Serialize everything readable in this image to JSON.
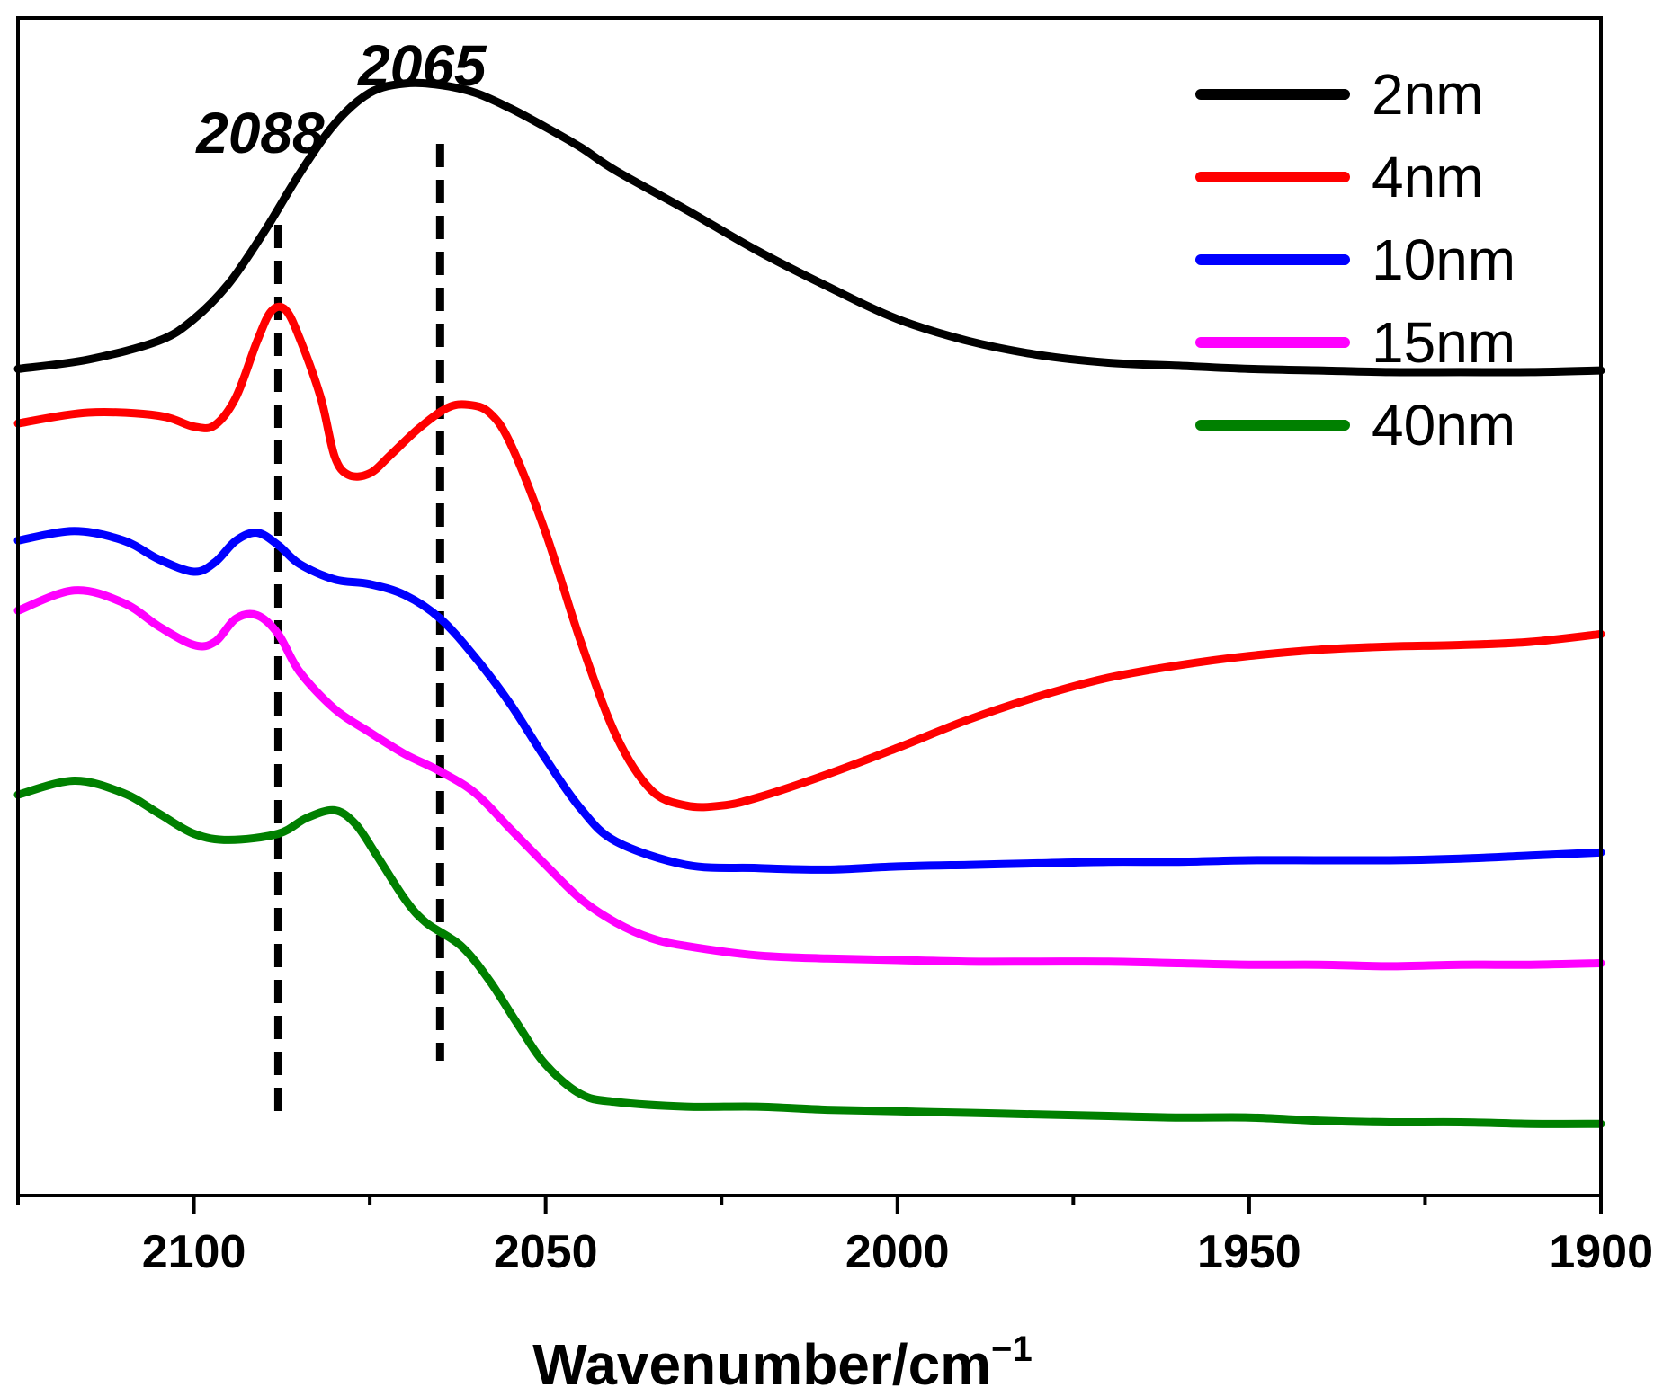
{
  "chart_data": {
    "type": "line",
    "title": "",
    "xlabel": "Wavenumber/cm",
    "xlabel_superscript": "−1",
    "ylabel": "",
    "xlim": [
      2125,
      1900
    ],
    "x_reversed": true,
    "y_ticks_shown": false,
    "grid": false,
    "legend_position": "top-right",
    "x_ticks": [
      "2100",
      "2050",
      "2000",
      "1950",
      "1900"
    ],
    "x_tick_values": [
      2100,
      2050,
      2000,
      1950,
      1900
    ],
    "x_minor_tick_values": [
      2125,
      2075,
      2025,
      1975,
      1925
    ],
    "annotations": [
      {
        "label": "2088",
        "x": 2088,
        "style": "dashed-vertical"
      },
      {
        "label": "2065",
        "x": 2065,
        "style": "dashed-vertical"
      }
    ],
    "series": [
      {
        "name": "2nm",
        "color": "#000000",
        "x": [
          2125,
          2115,
          2105,
          2100,
          2095,
          2090,
          2085,
          2080,
          2075,
          2070,
          2065,
          2060,
          2055,
          2050,
          2045,
          2040,
          2030,
          2020,
          2010,
          2000,
          1990,
          1980,
          1970,
          1960,
          1950,
          1940,
          1930,
          1920,
          1910,
          1900
        ],
        "y": [
          3.4,
          3.46,
          3.58,
          3.72,
          3.95,
          4.28,
          4.65,
          4.97,
          5.17,
          5.23,
          5.22,
          5.17,
          5.07,
          4.95,
          4.82,
          4.67,
          4.42,
          4.16,
          3.93,
          3.72,
          3.58,
          3.49,
          3.44,
          3.42,
          3.4,
          3.39,
          3.38,
          3.38,
          3.38,
          3.39
        ]
      },
      {
        "name": "4nm",
        "color": "#ff0000",
        "x": [
          2125,
          2115,
          2105,
          2100,
          2097,
          2094,
          2091,
          2089,
          2087,
          2085,
          2082,
          2080,
          2078,
          2075,
          2072,
          2068,
          2064,
          2061,
          2058,
          2055,
          2050,
          2045,
          2040,
          2035,
          2030,
          2025,
          2020,
          2010,
          2000,
          1990,
          1980,
          1970,
          1960,
          1950,
          1940,
          1930,
          1920,
          1910,
          1900
        ],
        "y": [
          3.05,
          3.12,
          3.1,
          3.03,
          3.04,
          3.22,
          3.58,
          3.77,
          3.78,
          3.6,
          3.22,
          2.84,
          2.72,
          2.73,
          2.85,
          3.02,
          3.15,
          3.17,
          3.12,
          2.92,
          2.35,
          1.65,
          1.05,
          0.7,
          0.6,
          0.6,
          0.65,
          0.8,
          0.97,
          1.15,
          1.3,
          1.42,
          1.5,
          1.56,
          1.6,
          1.62,
          1.63,
          1.65,
          1.7
        ]
      },
      {
        "name": "10nm",
        "color": "#0000ff",
        "x": [
          2125,
          2117,
          2110,
          2105,
          2100,
          2097,
          2094,
          2091,
          2088,
          2085,
          2080,
          2075,
          2070,
          2065,
          2060,
          2055,
          2050,
          2045,
          2040,
          2030,
          2020,
          2010,
          2000,
          1990,
          1980,
          1970,
          1960,
          1950,
          1940,
          1930,
          1920,
          1910,
          1900
        ],
        "y": [
          2.3,
          2.36,
          2.3,
          2.18,
          2.1,
          2.16,
          2.3,
          2.35,
          2.27,
          2.15,
          2.05,
          2.02,
          1.95,
          1.8,
          1.55,
          1.25,
          0.9,
          0.58,
          0.37,
          0.22,
          0.2,
          0.19,
          0.21,
          0.22,
          0.23,
          0.24,
          0.24,
          0.25,
          0.25,
          0.25,
          0.26,
          0.28,
          0.3
        ]
      },
      {
        "name": "15nm",
        "color": "#ff00ff",
        "x": [
          2125,
          2117,
          2110,
          2105,
          2100,
          2097,
          2094,
          2091,
          2088,
          2085,
          2080,
          2075,
          2070,
          2065,
          2060,
          2055,
          2050,
          2045,
          2040,
          2035,
          2030,
          2020,
          2010,
          2000,
          1990,
          1980,
          1970,
          1960,
          1950,
          1940,
          1930,
          1920,
          1910,
          1900
        ],
        "y": [
          1.85,
          1.98,
          1.9,
          1.75,
          1.63,
          1.65,
          1.8,
          1.82,
          1.7,
          1.46,
          1.22,
          1.07,
          0.93,
          0.82,
          0.68,
          0.45,
          0.22,
          0.0,
          -0.15,
          -0.25,
          -0.3,
          -0.36,
          -0.38,
          -0.39,
          -0.4,
          -0.4,
          -0.4,
          -0.41,
          -0.42,
          -0.42,
          -0.43,
          -0.42,
          -0.42,
          -0.41
        ]
      },
      {
        "name": "40nm",
        "color": "#008000",
        "x": [
          2125,
          2117,
          2110,
          2105,
          2100,
          2095,
          2088,
          2084,
          2080,
          2077,
          2074,
          2070,
          2067,
          2062,
          2058,
          2054,
          2050,
          2045,
          2040,
          2030,
          2020,
          2010,
          2000,
          1990,
          1980,
          1970,
          1960,
          1950,
          1940,
          1930,
          1920,
          1910,
          1900
        ],
        "y": [
          0.67,
          0.76,
          0.68,
          0.55,
          0.42,
          0.38,
          0.42,
          0.52,
          0.57,
          0.48,
          0.28,
          0.0,
          -0.15,
          -0.3,
          -0.52,
          -0.8,
          -1.06,
          -1.25,
          -1.3,
          -1.33,
          -1.33,
          -1.35,
          -1.36,
          -1.37,
          -1.38,
          -1.39,
          -1.4,
          -1.4,
          -1.42,
          -1.43,
          -1.43,
          -1.44,
          -1.44
        ]
      }
    ]
  }
}
